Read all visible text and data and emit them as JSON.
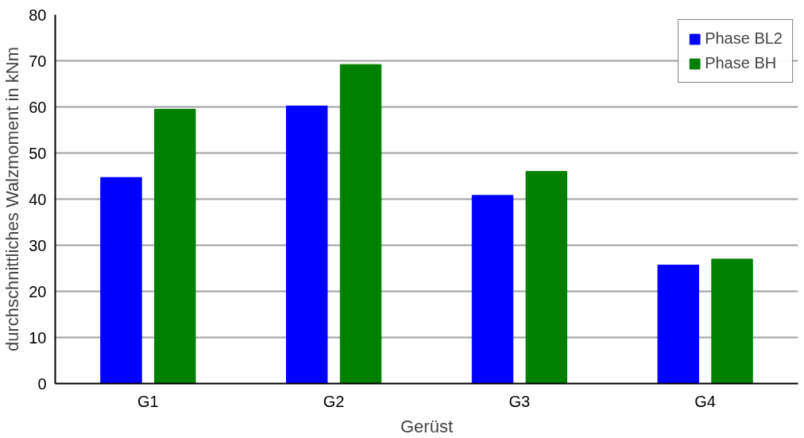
{
  "chart_data": {
    "type": "bar",
    "xlabel": "Gerüst",
    "ylabel": "durchschnittliches Walzmoment in kNm",
    "categories": [
      "G1",
      "G2",
      "G3",
      "G4"
    ],
    "series": [
      {
        "name": "Phase BL2",
        "color": "#0000ff",
        "values": [
          44.7,
          60.2,
          40.8,
          25.7
        ]
      },
      {
        "name": "Phase BH",
        "color": "#008000",
        "values": [
          59.5,
          69.2,
          46.0,
          27.0
        ]
      }
    ],
    "ylim": [
      0,
      80
    ],
    "yticks": [
      0,
      10,
      20,
      30,
      40,
      50,
      60,
      70,
      80
    ],
    "grid": "y",
    "legend": "top right"
  }
}
